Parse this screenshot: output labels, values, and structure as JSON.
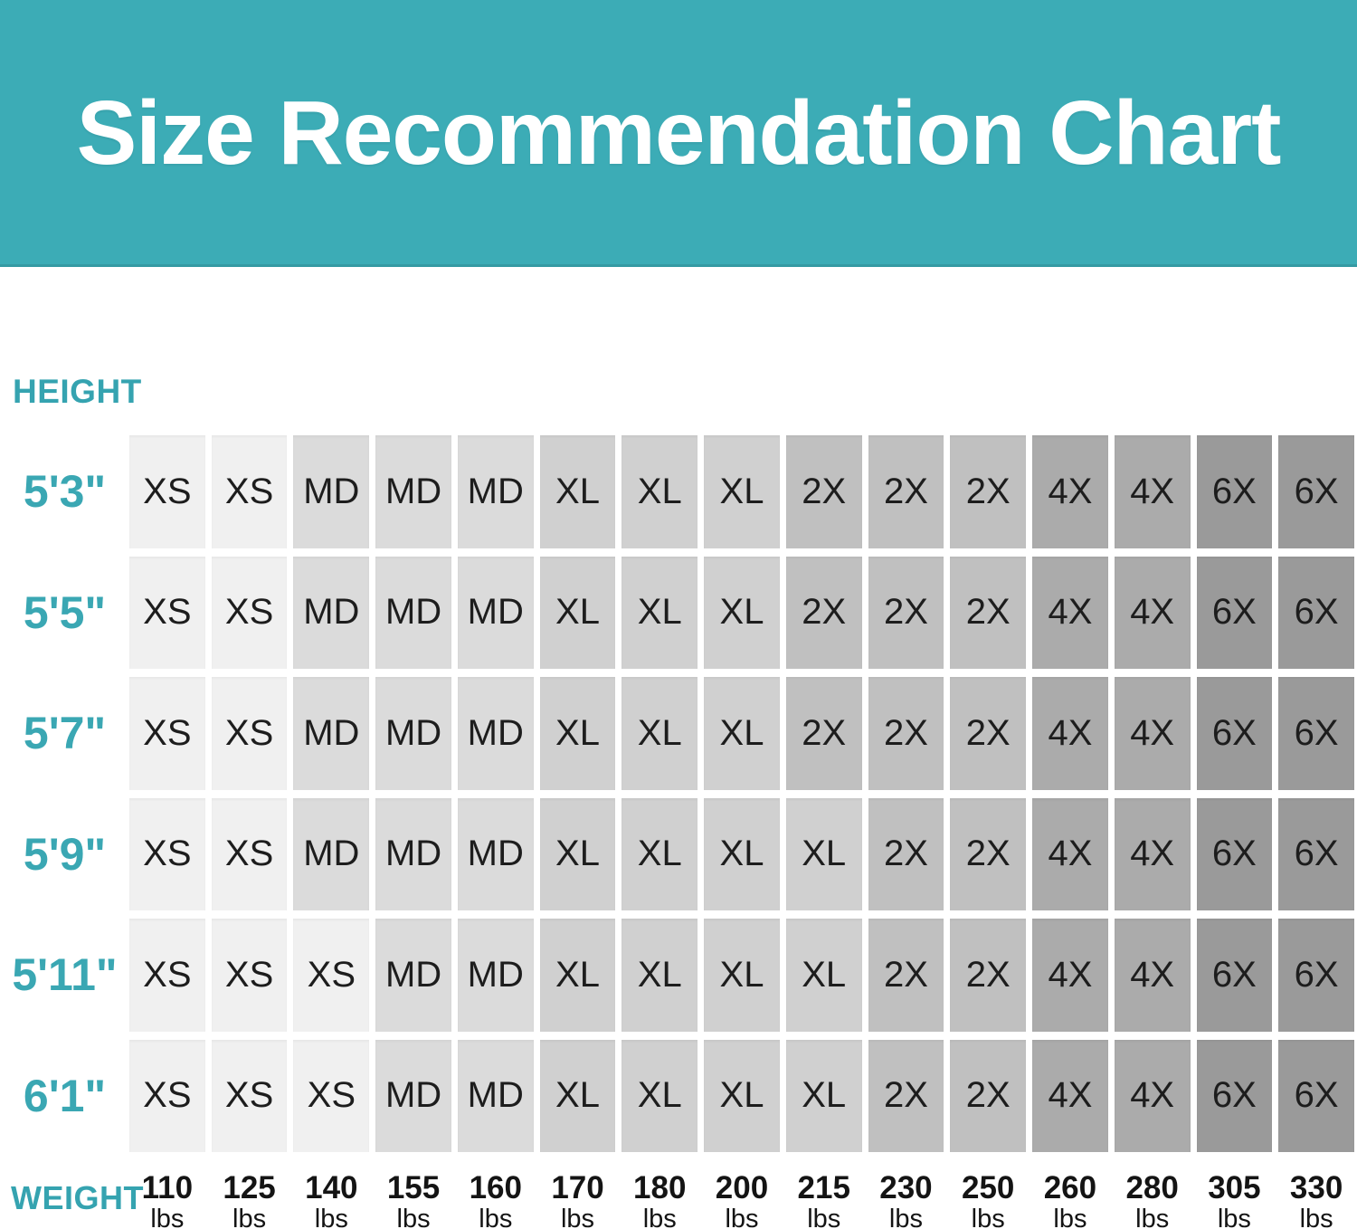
{
  "title": "Size Recommendation Chart",
  "colors": {
    "banner_teal": "#3CACB6",
    "label_teal": "#35A3B0",
    "cell_text": "#1D1D1D",
    "size_shades": {
      "XS": "#F0F0F0",
      "MD": "#DBDBDB",
      "XL": "#D0D0D0",
      "2X": "#C0C0C0",
      "4X": "#ABABAB",
      "6X": "#9A9A9A"
    }
  },
  "chart_data": {
    "type": "heatmap",
    "title": "Size Recommendation Chart",
    "x_axis": {
      "label": "WEIGHT",
      "unit": "lbs",
      "values": [
        "110",
        "125",
        "140",
        "155",
        "160",
        "170",
        "180",
        "200",
        "215",
        "230",
        "250",
        "260",
        "280",
        "305",
        "330"
      ]
    },
    "y_axis": {
      "label": "HEIGHT",
      "values": [
        "5'3\"",
        "5'5\"",
        "5'7\"",
        "5'9\"",
        "5'11\"",
        "6'1\""
      ]
    },
    "size_scale": [
      "XS",
      "MD",
      "XL",
      "2X",
      "4X",
      "6X"
    ],
    "rows": [
      {
        "height": "5'3\"",
        "sizes": [
          "XS",
          "XS",
          "MD",
          "MD",
          "MD",
          "XL",
          "XL",
          "XL",
          "2X",
          "2X",
          "2X",
          "4X",
          "4X",
          "6X",
          "6X"
        ]
      },
      {
        "height": "5'5\"",
        "sizes": [
          "XS",
          "XS",
          "MD",
          "MD",
          "MD",
          "XL",
          "XL",
          "XL",
          "2X",
          "2X",
          "2X",
          "4X",
          "4X",
          "6X",
          "6X"
        ]
      },
      {
        "height": "5'7\"",
        "sizes": [
          "XS",
          "XS",
          "MD",
          "MD",
          "MD",
          "XL",
          "XL",
          "XL",
          "2X",
          "2X",
          "2X",
          "4X",
          "4X",
          "6X",
          "6X"
        ]
      },
      {
        "height": "5'9\"",
        "sizes": [
          "XS",
          "XS",
          "MD",
          "MD",
          "MD",
          "XL",
          "XL",
          "XL",
          "XL",
          "2X",
          "2X",
          "4X",
          "4X",
          "6X",
          "6X"
        ]
      },
      {
        "height": "5'11\"",
        "sizes": [
          "XS",
          "XS",
          "XS",
          "MD",
          "MD",
          "XL",
          "XL",
          "XL",
          "XL",
          "2X",
          "2X",
          "4X",
          "4X",
          "6X",
          "6X"
        ]
      },
      {
        "height": "6'1\"",
        "sizes": [
          "XS",
          "XS",
          "XS",
          "MD",
          "MD",
          "XL",
          "XL",
          "XL",
          "XL",
          "2X",
          "2X",
          "4X",
          "4X",
          "6X",
          "6X"
        ]
      }
    ]
  }
}
